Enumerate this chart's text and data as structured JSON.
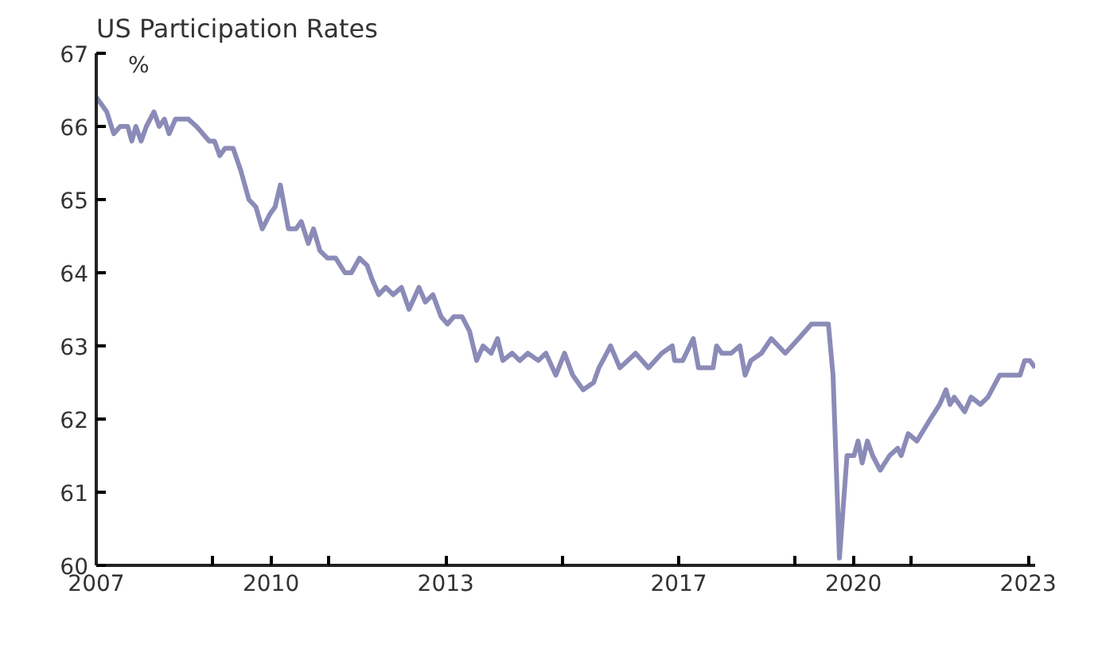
{
  "chart_data": {
    "type": "line",
    "title": "US Participation Rates",
    "ylabel": "%",
    "x": [
      2007.0,
      2007.18,
      2007.3,
      2007.41,
      2007.54,
      2007.61,
      2007.68,
      2007.77,
      2007.86,
      2007.99,
      2008.08,
      2008.17,
      2008.25,
      2008.36,
      2008.58,
      2008.72,
      2008.94,
      2009.03,
      2009.12,
      2009.21,
      2009.35,
      2009.48,
      2009.62,
      2009.74,
      2009.85,
      2009.98,
      2010.07,
      2010.16,
      2010.3,
      2010.43,
      2010.52,
      2010.64,
      2010.73,
      2010.84,
      2010.97,
      2011.11,
      2011.27,
      2011.38,
      2011.52,
      2011.65,
      2011.74,
      2011.85,
      2011.97,
      2012.1,
      2012.24,
      2012.37,
      2012.54,
      2012.65,
      2012.78,
      2012.92,
      2013.03,
      2013.14,
      2013.28,
      2013.41,
      2013.53,
      2013.64,
      2013.78,
      2013.89,
      2013.98,
      2014.14,
      2014.27,
      2014.41,
      2014.59,
      2014.72,
      2014.89,
      2015.04,
      2015.18,
      2015.36,
      2015.54,
      2015.63,
      2015.83,
      2015.99,
      2016.26,
      2016.48,
      2016.71,
      2016.89,
      2016.93,
      2017.07,
      2017.25,
      2017.34,
      2017.59,
      2017.65,
      2017.74,
      2017.9,
      2018.05,
      2018.14,
      2018.24,
      2018.42,
      2018.59,
      2018.83,
      2019.06,
      2019.28,
      2019.57,
      2019.65,
      2019.76,
      2019.89,
      2020.01,
      2020.08,
      2020.15,
      2020.24,
      2020.33,
      2020.46,
      2020.62,
      2020.76,
      2020.82,
      2020.94,
      2021.09,
      2021.32,
      2021.48,
      2021.59,
      2021.66,
      2021.73,
      2021.91,
      2022.02,
      2022.18,
      2022.31,
      2022.51,
      2022.86,
      2022.94,
      2023.03,
      2023.12
    ],
    "series": [
      {
        "color": "#8b8bb8",
        "values": [
          66.4,
          66.2,
          65.9,
          66.0,
          66.0,
          65.8,
          66.0,
          65.8,
          66.0,
          66.2,
          66.0,
          66.1,
          65.9,
          66.1,
          66.1,
          66.0,
          65.8,
          65.8,
          65.6,
          65.7,
          65.7,
          65.4,
          65.0,
          64.9,
          64.6,
          64.8,
          64.9,
          65.2,
          64.6,
          64.6,
          64.7,
          64.4,
          64.6,
          64.3,
          64.2,
          64.2,
          64.0,
          64.0,
          64.2,
          64.1,
          63.9,
          63.7,
          63.8,
          63.7,
          63.8,
          63.5,
          63.8,
          63.6,
          63.7,
          63.4,
          63.3,
          63.4,
          63.4,
          63.2,
          62.8,
          63.0,
          62.9,
          63.1,
          62.8,
          62.9,
          62.8,
          62.9,
          62.8,
          62.9,
          62.6,
          62.9,
          62.6,
          62.4,
          62.5,
          62.7,
          63.0,
          62.7,
          62.9,
          62.7,
          62.9,
          63.0,
          62.8,
          62.8,
          63.1,
          62.7,
          62.7,
          63.0,
          62.9,
          62.9,
          63.0,
          62.6,
          62.8,
          62.9,
          63.1,
          62.9,
          63.1,
          63.3,
          63.3,
          62.6,
          60.1,
          61.5,
          61.5,
          61.7,
          61.4,
          61.7,
          61.5,
          61.3,
          61.5,
          61.6,
          61.5,
          61.8,
          61.7,
          62.0,
          62.2,
          62.4,
          62.2,
          62.3,
          62.1,
          62.3,
          62.2,
          62.3,
          62.6,
          62.6,
          62.8,
          62.8,
          62.7
        ]
      }
    ],
    "xlim": [
      2007.0,
      2023.12
    ],
    "xticks": [
      2007,
      {
        "value": 2009,
        "label": null
      },
      2010,
      {
        "value": 2011,
        "label": null
      },
      2013,
      {
        "value": 2015,
        "label": null
      },
      2017,
      {
        "value": 2019,
        "label": null
      },
      2020,
      {
        "value": 2021,
        "label": null
      },
      2023
    ],
    "ylim": [
      60,
      67
    ],
    "yticks": [
      60,
      61,
      62,
      63,
      64,
      65,
      66,
      67
    ],
    "grid": false
  }
}
